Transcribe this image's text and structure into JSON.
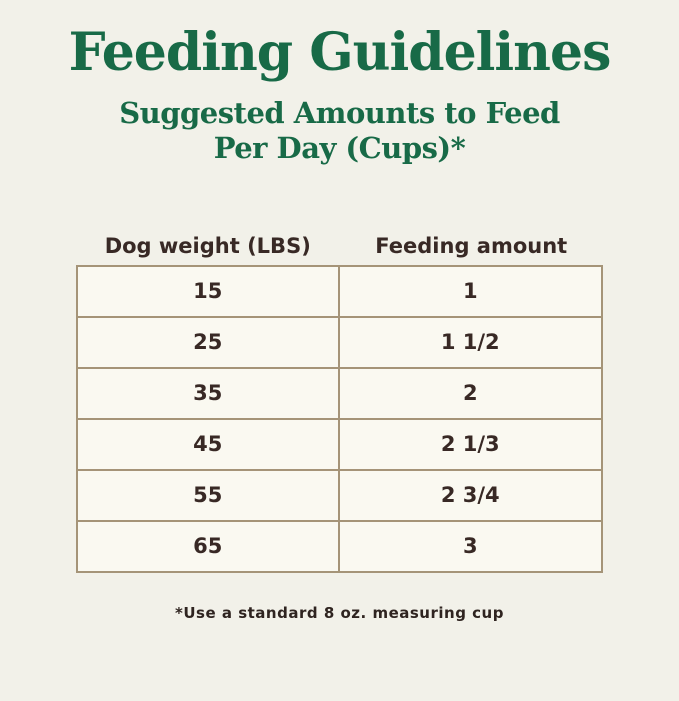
{
  "page": {
    "title": "Feeding Guidelines",
    "subtitle_line1": "Suggested Amounts to Feed",
    "subtitle_line2": "Per Day (Cups)*",
    "footnote": "*Use a standard 8 oz. measuring cup"
  },
  "colors": {
    "background": "#f2f1e9",
    "cell_background": "#faf9f1",
    "table_border": "#a59478",
    "heading_green": "#186a47",
    "text_brown": "#382925"
  },
  "table": {
    "columns": [
      "Dog weight (LBS)",
      "Feeding amount"
    ],
    "rows": [
      {
        "dog_weight_lbs": "15",
        "feeding_amount": "1"
      },
      {
        "dog_weight_lbs": "25",
        "feeding_amount": "1 1/2"
      },
      {
        "dog_weight_lbs": "35",
        "feeding_amount": "2"
      },
      {
        "dog_weight_lbs": "45",
        "feeding_amount": "2 1/3"
      },
      {
        "dog_weight_lbs": "55",
        "feeding_amount": "2 3/4"
      },
      {
        "dog_weight_lbs": "65",
        "feeding_amount": "3"
      }
    ]
  },
  "chart_data": {
    "type": "table",
    "title": "Feeding Guidelines",
    "subtitle": "Suggested Amounts to Feed Per Day (Cups)*",
    "columns": [
      "Dog weight (LBS)",
      "Feeding amount"
    ],
    "rows": [
      [
        "15",
        "1"
      ],
      [
        "25",
        "1 1/2"
      ],
      [
        "35",
        "2"
      ],
      [
        "45",
        "2 1/3"
      ],
      [
        "55",
        "2 3/4"
      ],
      [
        "65",
        "3"
      ]
    ],
    "footnote": "*Use a standard 8 oz. measuring cup"
  }
}
